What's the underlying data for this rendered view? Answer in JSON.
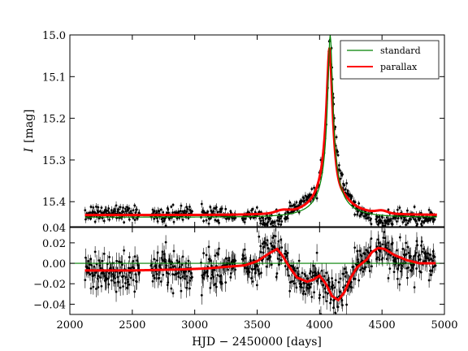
{
  "chart_data": [
    {
      "type": "scatter",
      "panel": "light curve",
      "ylabel_italic": "I",
      "ylabel_rest": "[mag]",
      "xlim": [
        2000,
        5000
      ],
      "ylim": [
        15.46,
        15.0
      ],
      "y_inverted": true,
      "yticks": [
        "15.0",
        "15.1",
        "15.2",
        "15.3",
        "15.4"
      ],
      "yticks_values": [
        15.0,
        15.1,
        15.2,
        15.3,
        15.4
      ],
      "legend": {
        "placement": "top-right",
        "entries": [
          "standard",
          "parallax"
        ]
      },
      "series": [
        {
          "name": "standard",
          "kind": "line",
          "color": "#008000",
          "model": {
            "baseline": 15.437,
            "peak": 15.0,
            "t0": 4085,
            "tE": 280,
            "u0": 0.068
          }
        },
        {
          "name": "parallax",
          "kind": "line",
          "color": "#ff0000",
          "model": {
            "baseline": 15.432,
            "peak": 15.022,
            "t0": 4080,
            "tE": 300,
            "u0": 0.076
          },
          "bumps": [
            {
              "x": 3700,
              "dy": -0.006,
              "w": 70
            },
            {
              "x": 4130,
              "dy": 0.02,
              "w": 55
            },
            {
              "x": 4500,
              "dy": -0.006,
              "w": 60
            }
          ]
        },
        {
          "name": "",
          "kind": "points",
          "color": "#000000",
          "segments": [
            [
              2120,
              2560
            ],
            [
              2650,
              2980
            ],
            [
              3050,
              3330
            ],
            [
              3380,
              3700
            ],
            [
              3720,
              4420
            ],
            [
              4450,
              4930
            ]
          ],
          "noise": 0.006
        }
      ]
    },
    {
      "type": "scatter",
      "panel": "residuals",
      "xlabel": "HJD − 2450000 [days]",
      "xlim": [
        2000,
        5000
      ],
      "ylim": [
        -0.05,
        0.035
      ],
      "xticks": [
        "2000",
        "2500",
        "3000",
        "3500",
        "4000",
        "4500",
        "5000"
      ],
      "xticks_values": [
        2000,
        2500,
        3000,
        3500,
        4000,
        4500,
        5000
      ],
      "yticks": [
        "0.04",
        "0.02",
        "0.00",
        "−0.02",
        "−0.04"
      ],
      "yticks_values": [
        0.04,
        0.02,
        0.0,
        -0.02,
        -0.04
      ],
      "series": [
        {
          "name": "standard",
          "kind": "line",
          "color": "#008000",
          "value": 0.0
        },
        {
          "name": "parallax",
          "kind": "line",
          "color": "#ff0000",
          "x": [
            2120,
            2500,
            2900,
            3100,
            3400,
            3500,
            3600,
            3660,
            3700,
            3760,
            3820,
            3900,
            3950,
            4000,
            4050,
            4100,
            4150,
            4200,
            4250,
            4300,
            4380,
            4420,
            4470,
            4520,
            4600,
            4700,
            4800,
            4930
          ],
          "y": [
            -0.007,
            -0.007,
            -0.006,
            -0.005,
            -0.002,
            0.002,
            0.01,
            0.014,
            0.008,
            -0.004,
            -0.014,
            -0.018,
            -0.016,
            -0.012,
            -0.02,
            -0.032,
            -0.036,
            -0.028,
            -0.014,
            -0.004,
            0.004,
            0.011,
            0.015,
            0.014,
            0.008,
            0.003,
            0.0,
            0.0
          ]
        },
        {
          "name": "",
          "kind": "points",
          "color": "#000000",
          "noise": 0.009
        }
      ]
    }
  ]
}
